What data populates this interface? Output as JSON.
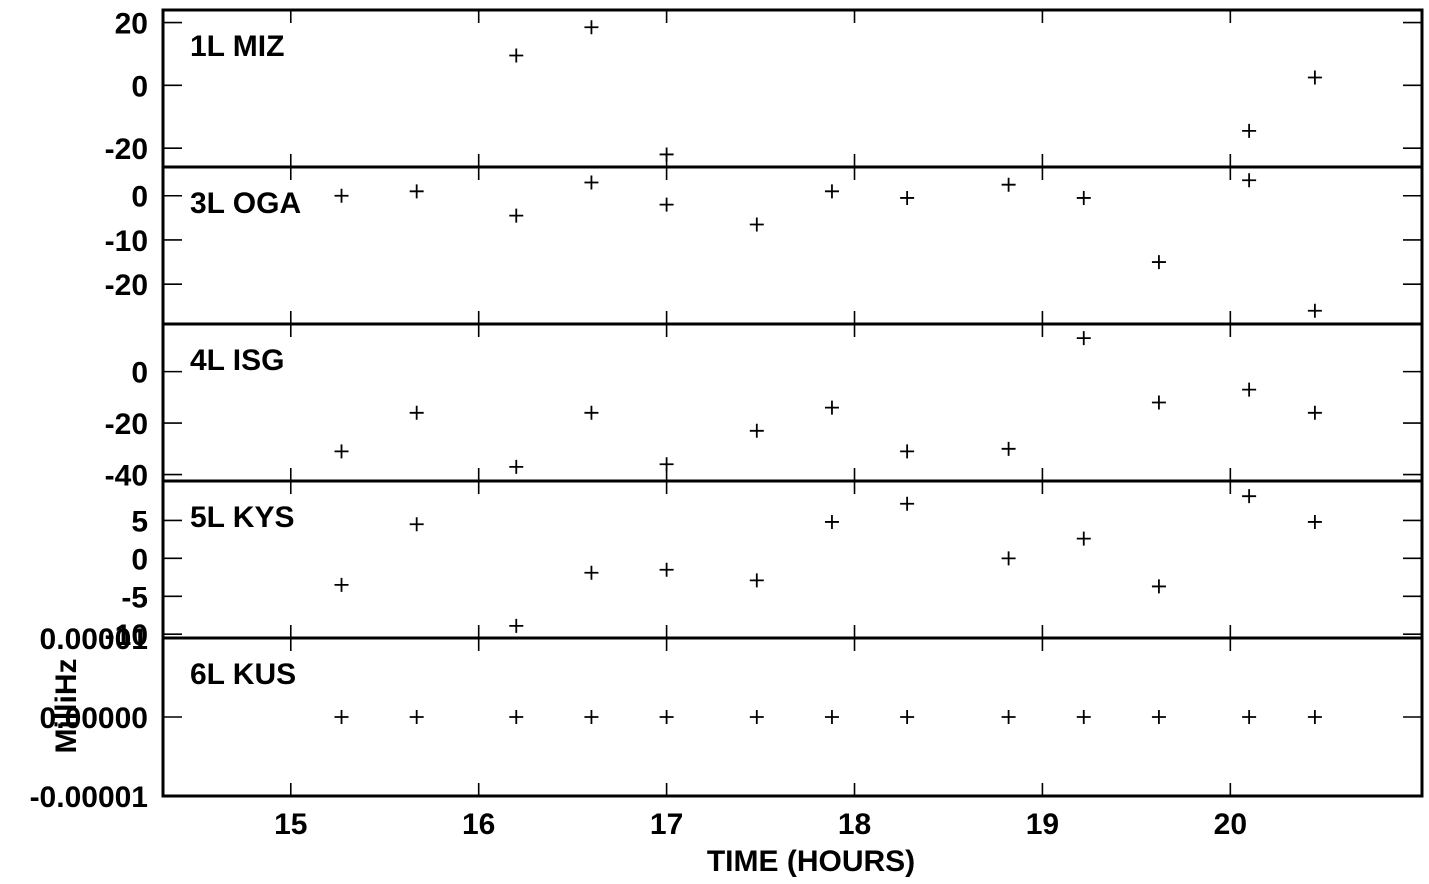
{
  "chart_data": {
    "type": "scatter",
    "xlabel": "TIME (HOURS)",
    "ylabel": "MilliHz",
    "xlim": [
      14.32,
      21.02
    ],
    "x_ticks": [
      "15",
      "16",
      "17",
      "18",
      "19",
      "20"
    ],
    "marker": "+",
    "panels": [
      {
        "label": "1L MIZ",
        "ylim": [
          -26,
          24
        ],
        "y_ticks": [
          "20",
          "0",
          "-20"
        ],
        "y_tick_values": [
          20,
          0,
          -20
        ],
        "x": [
          16.2,
          16.6,
          17.0,
          20.1,
          20.45
        ],
        "y": [
          9.5,
          18.5,
          -22,
          -14.5,
          2.5
        ]
      },
      {
        "label": "3L OGA",
        "ylim": [
          -29,
          6.5
        ],
        "y_ticks": [
          "0",
          "-10",
          "-20"
        ],
        "y_tick_values": [
          0,
          -10,
          -20
        ],
        "x": [
          15.27,
          15.67,
          16.2,
          16.6,
          17.0,
          17.48,
          17.88,
          18.28,
          18.82,
          19.22,
          19.62,
          20.1,
          20.45
        ],
        "y": [
          0,
          1,
          -4.5,
          3,
          -2,
          -6.5,
          1,
          -0.5,
          2.5,
          -0.5,
          -15,
          3.5,
          -26
        ]
      },
      {
        "label": "4L ISG",
        "ylim": [
          -42.5,
          18.5
        ],
        "y_ticks": [
          "0",
          "-20",
          "-40"
        ],
        "y_tick_values": [
          0,
          -20,
          -40
        ],
        "x": [
          15.27,
          15.67,
          16.2,
          16.6,
          17.0,
          17.48,
          17.88,
          18.28,
          18.82,
          19.22,
          19.62,
          20.1,
          20.45
        ],
        "y": [
          -31,
          -16,
          -37,
          -16,
          -36,
          -23,
          -14,
          -31,
          -30,
          13,
          -12,
          -7,
          -16
        ]
      },
      {
        "label": "5L KYS",
        "ylim": [
          -10.5,
          10.2
        ],
        "y_ticks": [
          "5",
          "0",
          "-5",
          "-10"
        ],
        "y_tick_values": [
          5,
          0,
          -5,
          -10
        ],
        "x": [
          15.27,
          15.67,
          16.2,
          16.6,
          17.0,
          17.48,
          17.88,
          18.28,
          18.82,
          19.22,
          19.62,
          20.1,
          20.45
        ],
        "y": [
          -3.5,
          4.5,
          -8.9,
          -1.9,
          -1.5,
          -2.9,
          4.8,
          7.2,
          0,
          2.6,
          -3.7,
          8.2,
          4.8
        ]
      },
      {
        "label": "6L KUS",
        "ylim": [
          -1e-05,
          1e-05
        ],
        "y_ticks": [
          "0.00001",
          "0.00000",
          "-0.00001"
        ],
        "y_tick_values": [
          1e-05,
          0,
          -1e-05
        ],
        "x": [
          15.27,
          15.67,
          16.2,
          16.6,
          17.0,
          17.48,
          17.88,
          18.28,
          18.82,
          19.22,
          19.62,
          20.1,
          20.45
        ],
        "y": [
          0,
          0,
          0,
          0,
          0,
          0,
          0,
          0,
          0,
          0,
          0,
          0,
          0
        ]
      }
    ]
  }
}
